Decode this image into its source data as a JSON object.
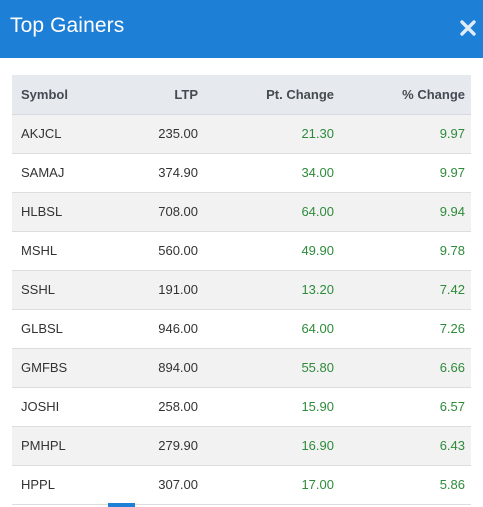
{
  "modal": {
    "title": "Top Gainers",
    "close_icon": "close-icon",
    "accent_color": "#1e7fd6",
    "positive_color": "#2e8b3a"
  },
  "table": {
    "columns": [
      "Symbol",
      "LTP",
      "Pt. Change",
      "% Change"
    ],
    "rows": [
      {
        "symbol": "AKJCL",
        "ltp": "235.00",
        "pt_change": "21.30",
        "pct_change": "9.97"
      },
      {
        "symbol": "SAMAJ",
        "ltp": "374.90",
        "pt_change": "34.00",
        "pct_change": "9.97"
      },
      {
        "symbol": "HLBSL",
        "ltp": "708.00",
        "pt_change": "64.00",
        "pct_change": "9.94"
      },
      {
        "symbol": "MSHL",
        "ltp": "560.00",
        "pt_change": "49.90",
        "pct_change": "9.78"
      },
      {
        "symbol": "SSHL",
        "ltp": "191.00",
        "pt_change": "13.20",
        "pct_change": "7.42"
      },
      {
        "symbol": "GLBSL",
        "ltp": "946.00",
        "pt_change": "64.00",
        "pct_change": "7.26"
      },
      {
        "symbol": "GMFBS",
        "ltp": "894.00",
        "pt_change": "55.80",
        "pct_change": "6.66"
      },
      {
        "symbol": "JOSHI",
        "ltp": "258.00",
        "pt_change": "15.90",
        "pct_change": "6.57"
      },
      {
        "symbol": "PMHPL",
        "ltp": "279.90",
        "pt_change": "16.90",
        "pct_change": "6.43"
      },
      {
        "symbol": "HPPL",
        "ltp": "307.00",
        "pt_change": "17.00",
        "pct_change": "5.86"
      }
    ]
  }
}
